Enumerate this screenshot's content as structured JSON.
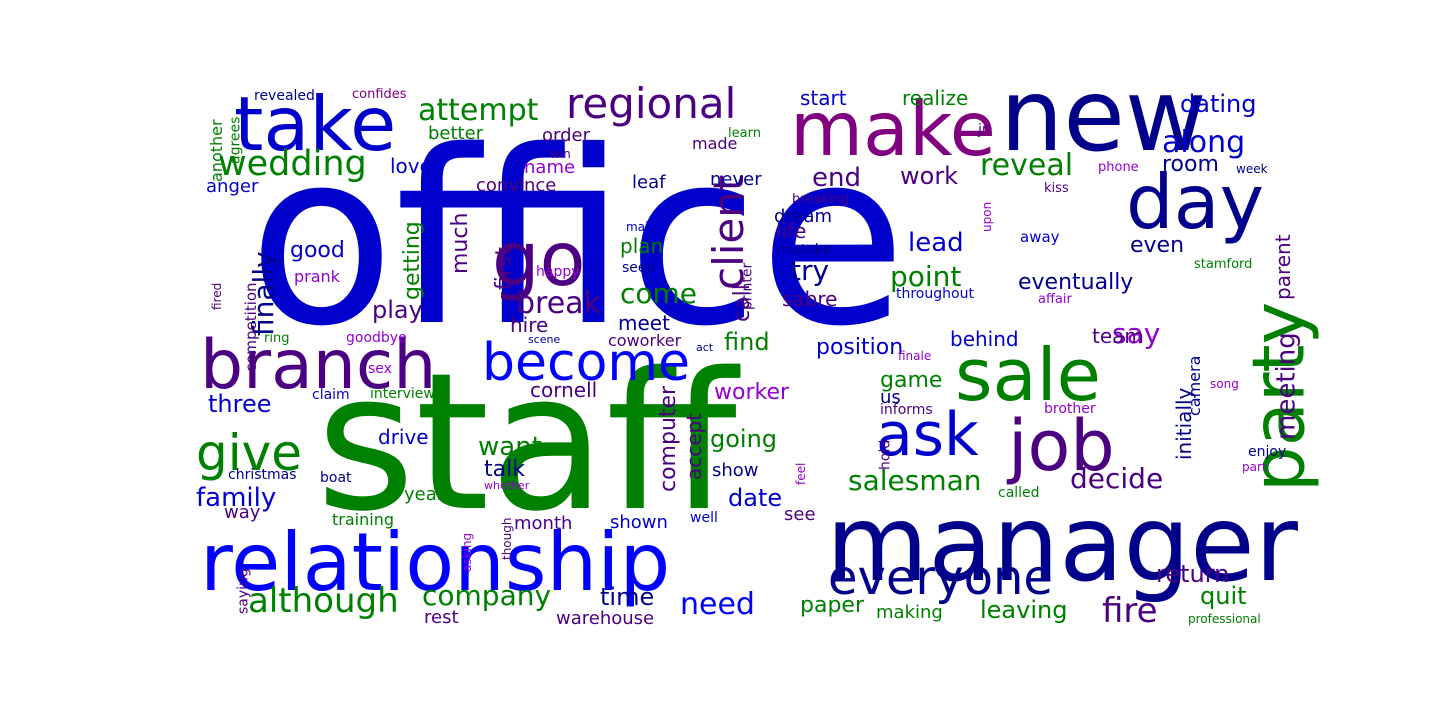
{
  "word_cloud": {
    "colors": {
      "blue": "#0000cd",
      "navy": "#00008b",
      "green": "#008000",
      "purple": "#800080",
      "indigo": "#4b0082",
      "violet": "#9400d3",
      "bright_blue": "#0000ff"
    },
    "words": [
      {
        "text": "office",
        "color": "blue",
        "rotate": 0
      },
      {
        "text": "staff",
        "color": "green",
        "rotate": 0
      },
      {
        "text": "new",
        "color": "navy",
        "rotate": 0
      },
      {
        "text": "manager",
        "color": "navy",
        "rotate": 0
      },
      {
        "text": "make",
        "color": "purple",
        "rotate": 0
      },
      {
        "text": "take",
        "color": "blue",
        "rotate": 0
      },
      {
        "text": "relationship",
        "color": "bright_blue",
        "rotate": 0
      },
      {
        "text": "branch",
        "color": "indigo",
        "rotate": 0
      },
      {
        "text": "day",
        "color": "navy",
        "rotate": 0
      },
      {
        "text": "sale",
        "color": "green",
        "rotate": 0
      },
      {
        "text": "go",
        "color": "indigo",
        "rotate": 0
      },
      {
        "text": "party",
        "color": "green",
        "rotate": -90
      },
      {
        "text": "job",
        "color": "indigo",
        "rotate": 0
      },
      {
        "text": "ask",
        "color": "blue",
        "rotate": 0
      },
      {
        "text": "become",
        "color": "bright_blue",
        "rotate": 0
      },
      {
        "text": "regional",
        "color": "indigo",
        "rotate": 0
      },
      {
        "text": "everyone",
        "color": "navy",
        "rotate": 0
      },
      {
        "text": "give",
        "color": "green",
        "rotate": 0
      },
      {
        "text": "client",
        "color": "indigo",
        "rotate": -90
      },
      {
        "text": "wedding",
        "color": "green",
        "rotate": 0
      },
      {
        "text": "attempt",
        "color": "green",
        "rotate": 0
      },
      {
        "text": "although",
        "color": "green",
        "rotate": 0
      },
      {
        "text": "break",
        "color": "indigo",
        "rotate": 0
      },
      {
        "text": "reveal",
        "color": "green",
        "rotate": 0
      },
      {
        "text": "fire",
        "color": "indigo",
        "rotate": 0
      },
      {
        "text": "salesman",
        "color": "green",
        "rotate": 0
      },
      {
        "text": "decide",
        "color": "indigo",
        "rotate": 0
      },
      {
        "text": "finally",
        "color": "navy",
        "rotate": -90
      },
      {
        "text": "come",
        "color": "green",
        "rotate": 0
      },
      {
        "text": "point",
        "color": "green",
        "rotate": 0
      },
      {
        "text": "company",
        "color": "green",
        "rotate": 0
      },
      {
        "text": "need",
        "color": "bright_blue",
        "rotate": 0
      },
      {
        "text": "along",
        "color": "blue",
        "rotate": 0
      },
      {
        "text": "dating",
        "color": "blue",
        "rotate": 0
      },
      {
        "text": "end",
        "color": "indigo",
        "rotate": 0
      },
      {
        "text": "work",
        "color": "indigo",
        "rotate": 0
      },
      {
        "text": "room",
        "color": "navy",
        "rotate": 0
      },
      {
        "text": "say",
        "color": "violet",
        "rotate": 0
      },
      {
        "text": "try",
        "color": "navy",
        "rotate": 0
      },
      {
        "text": "lead",
        "color": "blue",
        "rotate": 0
      },
      {
        "text": "even",
        "color": "navy",
        "rotate": 0
      },
      {
        "text": "want",
        "color": "green",
        "rotate": 0
      },
      {
        "text": "family",
        "color": "blue",
        "rotate": 0
      },
      {
        "text": "return",
        "color": "indigo",
        "rotate": 0
      },
      {
        "text": "leaving",
        "color": "green",
        "rotate": 0
      },
      {
        "text": "quit",
        "color": "green",
        "rotate": 0
      },
      {
        "text": "paper",
        "color": "green",
        "rotate": 0
      },
      {
        "text": "time",
        "color": "navy",
        "rotate": 0
      },
      {
        "text": "going",
        "color": "green",
        "rotate": 0
      },
      {
        "text": "date",
        "color": "blue",
        "rotate": 0
      },
      {
        "text": "position",
        "color": "blue",
        "rotate": 0
      },
      {
        "text": "find",
        "color": "green",
        "rotate": 0
      },
      {
        "text": "meeting",
        "color": "indigo",
        "rotate": -90
      },
      {
        "text": "eventually",
        "color": "navy",
        "rotate": 0
      },
      {
        "text": "play",
        "color": "indigo",
        "rotate": 0
      },
      {
        "text": "three",
        "color": "blue",
        "rotate": 0
      },
      {
        "text": "drive",
        "color": "blue",
        "rotate": 0
      },
      {
        "text": "talk",
        "color": "navy",
        "rotate": 0
      },
      {
        "text": "computer",
        "color": "indigo",
        "rotate": -90
      },
      {
        "text": "good",
        "color": "blue",
        "rotate": 0
      },
      {
        "text": "much",
        "color": "indigo",
        "rotate": -90
      },
      {
        "text": "getting",
        "color": "green",
        "rotate": -90
      },
      {
        "text": "first",
        "color": "indigo",
        "rotate": -90
      },
      {
        "text": "call",
        "color": "indigo",
        "rotate": -90
      },
      {
        "text": "plan",
        "color": "green",
        "rotate": 0
      },
      {
        "text": "life",
        "color": "indigo",
        "rotate": 0
      },
      {
        "text": "dream",
        "color": "navy",
        "rotate": 0
      },
      {
        "text": "sabre",
        "color": "indigo",
        "rotate": 0
      },
      {
        "text": "game",
        "color": "green",
        "rotate": 0
      },
      {
        "text": "us",
        "color": "navy",
        "rotate": 0
      },
      {
        "text": "behind",
        "color": "blue",
        "rotate": 0
      },
      {
        "text": "team",
        "color": "indigo",
        "rotate": 0
      },
      {
        "text": "initially",
        "color": "navy",
        "rotate": -90
      },
      {
        "text": "camera",
        "color": "navy",
        "rotate": -90
      },
      {
        "text": "parent",
        "color": "indigo",
        "rotate": -90
      },
      {
        "text": "hire",
        "color": "indigo",
        "rotate": 0
      },
      {
        "text": "meet",
        "color": "navy",
        "rotate": 0
      },
      {
        "text": "cornell",
        "color": "indigo",
        "rotate": 0
      },
      {
        "text": "worker",
        "color": "violet",
        "rotate": 0
      },
      {
        "text": "accept",
        "color": "indigo",
        "rotate": -90
      },
      {
        "text": "show",
        "color": "navy",
        "rotate": 0
      },
      {
        "text": "year",
        "color": "green",
        "rotate": 0
      },
      {
        "text": "month",
        "color": "indigo",
        "rotate": 0
      },
      {
        "text": "shown",
        "color": "blue",
        "rotate": 0
      },
      {
        "text": "see",
        "color": "indigo",
        "rotate": 0
      },
      {
        "text": "way",
        "color": "indigo",
        "rotate": 0
      },
      {
        "text": "rest",
        "color": "indigo",
        "rotate": 0
      },
      {
        "text": "warehouse",
        "color": "indigo",
        "rotate": 0
      },
      {
        "text": "making",
        "color": "green",
        "rotate": 0
      },
      {
        "text": "start",
        "color": "blue",
        "rotate": 0
      },
      {
        "text": "realize",
        "color": "green",
        "rotate": 0
      },
      {
        "text": "better",
        "color": "green",
        "rotate": 0
      },
      {
        "text": "order",
        "color": "indigo",
        "rotate": 0
      },
      {
        "text": "made",
        "color": "indigo",
        "rotate": 0
      },
      {
        "text": "love",
        "color": "blue",
        "rotate": 0
      },
      {
        "text": "name",
        "color": "violet",
        "rotate": 0
      },
      {
        "text": "convince",
        "color": "indigo",
        "rotate": 0
      },
      {
        "text": "leaf",
        "color": "navy",
        "rotate": 0
      },
      {
        "text": "never",
        "color": "navy",
        "rotate": 0
      },
      {
        "text": "anger",
        "color": "blue",
        "rotate": 0
      },
      {
        "text": "prank",
        "color": "violet",
        "rotate": 0
      },
      {
        "text": "competition",
        "color": "indigo",
        "rotate": -90
      },
      {
        "text": "goodbye",
        "color": "violet",
        "rotate": 0
      },
      {
        "text": "happy",
        "color": "violet",
        "rotate": 0
      },
      {
        "text": "seen",
        "color": "navy",
        "rotate": 0
      },
      {
        "text": "coworker",
        "color": "indigo",
        "rotate": 0
      },
      {
        "text": "mistake",
        "color": "navy",
        "rotate": 0
      },
      {
        "text": "printer",
        "color": "indigo",
        "rotate": -90
      },
      {
        "text": "breaking",
        "color": "indigo",
        "rotate": 0
      },
      {
        "text": "throughout",
        "color": "blue",
        "rotate": 0
      },
      {
        "text": "stamford",
        "color": "green",
        "rotate": 0
      },
      {
        "text": "affair",
        "color": "violet",
        "rotate": 0
      },
      {
        "text": "away",
        "color": "blue",
        "rotate": 0
      },
      {
        "text": "kiss",
        "color": "indigo",
        "rotate": 0
      },
      {
        "text": "phone",
        "color": "violet",
        "rotate": 0
      },
      {
        "text": "week",
        "color": "navy",
        "rotate": 0
      },
      {
        "text": "upon",
        "color": "violet",
        "rotate": -90
      },
      {
        "text": "jr",
        "color": "indigo",
        "rotate": 0
      },
      {
        "text": "learn",
        "color": "green",
        "rotate": 0
      },
      {
        "text": "win",
        "color": "indigo",
        "rotate": 0
      },
      {
        "text": "major",
        "color": "blue",
        "rotate": 0
      },
      {
        "text": "another",
        "color": "green",
        "rotate": -90
      },
      {
        "text": "agrees",
        "color": "green",
        "rotate": -90
      },
      {
        "text": "revealed",
        "color": "navy",
        "rotate": 0
      },
      {
        "text": "confides",
        "color": "purple",
        "rotate": 0
      },
      {
        "text": "fired",
        "color": "indigo",
        "rotate": -90
      },
      {
        "text": "ring",
        "color": "green",
        "rotate": 0
      },
      {
        "text": "scene",
        "color": "navy",
        "rotate": 0
      },
      {
        "text": "act",
        "color": "navy",
        "rotate": 0
      },
      {
        "text": "sex",
        "color": "violet",
        "rotate": 0
      },
      {
        "text": "claim",
        "color": "blue",
        "rotate": 0
      },
      {
        "text": "interview",
        "color": "green",
        "rotate": 0
      },
      {
        "text": "christmas",
        "color": "navy",
        "rotate": 0
      },
      {
        "text": "boat",
        "color": "navy",
        "rotate": 0
      },
      {
        "text": "whether",
        "color": "violet",
        "rotate": 0
      },
      {
        "text": "training",
        "color": "green",
        "rotate": 0
      },
      {
        "text": "saying",
        "color": "indigo",
        "rotate": -90
      },
      {
        "text": "asking",
        "color": "violet",
        "rotate": -90
      },
      {
        "text": "though",
        "color": "indigo",
        "rotate": -90
      },
      {
        "text": "well",
        "color": "blue",
        "rotate": 0
      },
      {
        "text": "feel",
        "color": "violet",
        "rotate": -90
      },
      {
        "text": "hold",
        "color": "indigo",
        "rotate": -90
      },
      {
        "text": "informs",
        "color": "indigo",
        "rotate": 0
      },
      {
        "text": "finale",
        "color": "violet",
        "rotate": 0
      },
      {
        "text": "called",
        "color": "green",
        "rotate": 0
      },
      {
        "text": "brother",
        "color": "violet",
        "rotate": 0
      },
      {
        "text": "song",
        "color": "violet",
        "rotate": 0
      },
      {
        "text": "enjoy",
        "color": "navy",
        "rotate": 0
      },
      {
        "text": "part",
        "color": "violet",
        "rotate": 0
      },
      {
        "text": "professional",
        "color": "green",
        "rotate": 0
      }
    ]
  }
}
